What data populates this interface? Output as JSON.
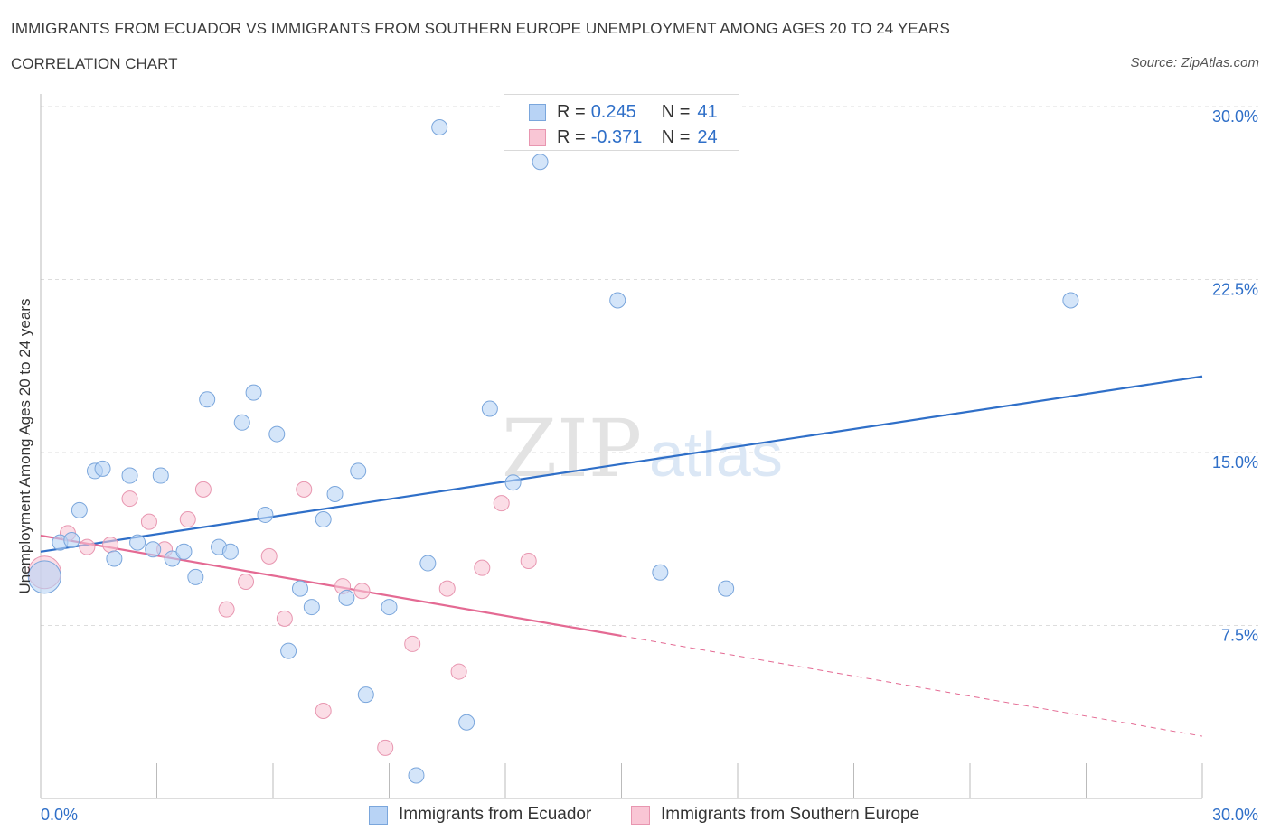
{
  "header": {
    "title": "IMMIGRANTS FROM ECUADOR VS IMMIGRANTS FROM SOUTHERN EUROPE UNEMPLOYMENT AMONG AGES 20 TO 24 YEARS",
    "subtitle": "CORRELATION CHART",
    "source": "Source: ZipAtlas.com"
  },
  "legend": {
    "r_label": "R =",
    "n_label": "N =",
    "series": [
      {
        "name": "Immigrants from Ecuador",
        "r": "0.245",
        "n": "41",
        "color": "#b8d3f5"
      },
      {
        "name": "Immigrants from Southern Europe",
        "r": "-0.371",
        "n": "24",
        "color": "#f9c6d5"
      }
    ]
  },
  "watermark": {
    "zip": "ZIP",
    "atlas": "atlas"
  },
  "colors": {
    "ecuador_fill": "#b8d3f5",
    "ecuador_stroke": "#7aa6dc",
    "ecuador_line": "#2f6fc8",
    "europe_fill": "#f9c6d5",
    "europe_stroke": "#e896b0",
    "europe_line": "#e46a93",
    "axis_label": "#2f6fc8",
    "grid": "#dddddd"
  },
  "chart_data": {
    "type": "scatter",
    "title": "IMMIGRANTS FROM ECUADOR VS IMMIGRANTS FROM SOUTHERN EUROPE UNEMPLOYMENT AMONG AGES 20 TO 24 YEARS",
    "xlabel": "",
    "ylabel": "Unemployment Among Ages 20 to 24 years",
    "xlim": [
      0,
      30
    ],
    "ylim": [
      0,
      30
    ],
    "x_tick_labels": [
      "0.0%",
      "30.0%"
    ],
    "y_ticks": [
      7.5,
      15.0,
      22.5,
      30.0
    ],
    "y_tick_labels": [
      "7.5%",
      "15.0%",
      "22.5%",
      "30.0%"
    ],
    "grid": true,
    "legend_position": "top-center",
    "series": [
      {
        "name": "Immigrants from Ecuador",
        "r": 0.245,
        "n": 41,
        "trend": {
          "x0": 0.0,
          "y0": 10.7,
          "x1": 30.0,
          "y1": 18.3,
          "dashed_from_x": null
        },
        "points": [
          {
            "x": 0.1,
            "y": 9.6,
            "big": true
          },
          {
            "x": 0.5,
            "y": 11.1
          },
          {
            "x": 0.8,
            "y": 11.2
          },
          {
            "x": 1.0,
            "y": 12.5
          },
          {
            "x": 1.4,
            "y": 14.2
          },
          {
            "x": 1.6,
            "y": 14.3
          },
          {
            "x": 1.9,
            "y": 10.4
          },
          {
            "x": 2.3,
            "y": 14.0
          },
          {
            "x": 2.5,
            "y": 11.1
          },
          {
            "x": 2.9,
            "y": 10.8
          },
          {
            "x": 3.1,
            "y": 14.0
          },
          {
            "x": 3.4,
            "y": 10.4
          },
          {
            "x": 3.7,
            "y": 10.7
          },
          {
            "x": 4.0,
            "y": 9.6
          },
          {
            "x": 4.3,
            "y": 17.3
          },
          {
            "x": 4.6,
            "y": 10.9
          },
          {
            "x": 4.9,
            "y": 10.7
          },
          {
            "x": 5.2,
            "y": 16.3
          },
          {
            "x": 5.5,
            "y": 17.6
          },
          {
            "x": 5.8,
            "y": 12.3
          },
          {
            "x": 6.1,
            "y": 15.8
          },
          {
            "x": 6.4,
            "y": 6.4
          },
          {
            "x": 6.7,
            "y": 9.1
          },
          {
            "x": 7.0,
            "y": 8.3
          },
          {
            "x": 7.3,
            "y": 12.1
          },
          {
            "x": 7.6,
            "y": 13.2
          },
          {
            "x": 7.9,
            "y": 8.7
          },
          {
            "x": 8.2,
            "y": 14.2
          },
          {
            "x": 8.4,
            "y": 4.5
          },
          {
            "x": 9.0,
            "y": 8.3
          },
          {
            "x": 9.7,
            "y": 1.0
          },
          {
            "x": 10.0,
            "y": 10.2
          },
          {
            "x": 10.3,
            "y": 29.1
          },
          {
            "x": 11.0,
            "y": 3.3
          },
          {
            "x": 11.6,
            "y": 16.9
          },
          {
            "x": 12.2,
            "y": 13.7
          },
          {
            "x": 12.9,
            "y": 27.6
          },
          {
            "x": 14.9,
            "y": 21.6
          },
          {
            "x": 16.0,
            "y": 9.8
          },
          {
            "x": 17.7,
            "y": 9.1
          },
          {
            "x": 26.6,
            "y": 21.6
          }
        ]
      },
      {
        "name": "Immigrants from Southern Europe",
        "r": -0.371,
        "n": 24,
        "trend": {
          "x0": 0.0,
          "y0": 11.4,
          "x1": 30.0,
          "y1": 2.7,
          "dashed_from_x": 15.0
        },
        "points": [
          {
            "x": 0.1,
            "y": 9.8,
            "big": true
          },
          {
            "x": 0.7,
            "y": 11.5
          },
          {
            "x": 1.2,
            "y": 10.9
          },
          {
            "x": 1.8,
            "y": 11.0
          },
          {
            "x": 2.3,
            "y": 13.0
          },
          {
            "x": 2.8,
            "y": 12.0
          },
          {
            "x": 3.2,
            "y": 10.8
          },
          {
            "x": 3.8,
            "y": 12.1
          },
          {
            "x": 4.2,
            "y": 13.4
          },
          {
            "x": 4.8,
            "y": 8.2
          },
          {
            "x": 5.3,
            "y": 9.4
          },
          {
            "x": 5.9,
            "y": 10.5
          },
          {
            "x": 6.3,
            "y": 7.8
          },
          {
            "x": 6.8,
            "y": 13.4
          },
          {
            "x": 7.3,
            "y": 3.8
          },
          {
            "x": 7.8,
            "y": 9.2
          },
          {
            "x": 8.3,
            "y": 9.0
          },
          {
            "x": 8.9,
            "y": 2.2
          },
          {
            "x": 9.6,
            "y": 6.7
          },
          {
            "x": 10.5,
            "y": 9.1
          },
          {
            "x": 10.8,
            "y": 5.5
          },
          {
            "x": 11.4,
            "y": 10.0
          },
          {
            "x": 11.9,
            "y": 12.8
          },
          {
            "x": 12.6,
            "y": 10.3
          }
        ]
      }
    ]
  }
}
